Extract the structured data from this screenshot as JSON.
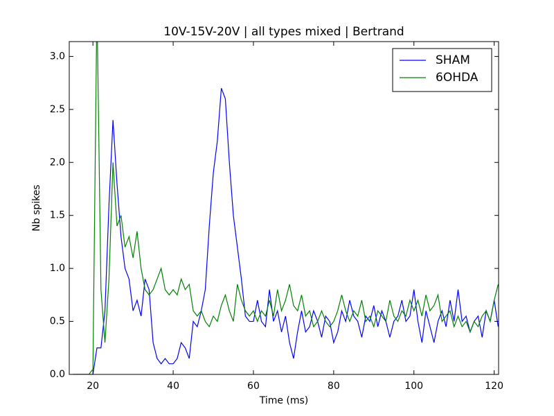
{
  "chart_data": {
    "type": "line",
    "title": "10V-15V-20V | all types mixed | Bertrand",
    "x_label": "Time (ms)",
    "y_label": "Nb spikes",
    "x": [
      15,
      16,
      17,
      18,
      19,
      20,
      21,
      22,
      23,
      24,
      25,
      26,
      27,
      28,
      29,
      30,
      31,
      32,
      33,
      34,
      35,
      36,
      37,
      38,
      39,
      40,
      41,
      42,
      43,
      44,
      45,
      46,
      47,
      48,
      49,
      50,
      51,
      52,
      53,
      54,
      55,
      56,
      57,
      58,
      59,
      60,
      61,
      62,
      63,
      64,
      65,
      66,
      67,
      68,
      69,
      70,
      71,
      72,
      73,
      74,
      75,
      76,
      77,
      78,
      79,
      80,
      81,
      82,
      83,
      84,
      85,
      86,
      87,
      88,
      89,
      90,
      91,
      92,
      93,
      94,
      95,
      96,
      97,
      98,
      99,
      100,
      101,
      102,
      103,
      104,
      105,
      106,
      107,
      108,
      109,
      110,
      111,
      112,
      113,
      114,
      115,
      116,
      117,
      118,
      119,
      120,
      121
    ],
    "series": [
      {
        "name": "SHAM",
        "color": "#0000ff",
        "values": [
          0,
          0,
          0,
          0,
          0,
          0,
          0.25,
          0.25,
          0.6,
          1.6,
          2.4,
          1.8,
          1.3,
          1.0,
          0.9,
          0.6,
          0.7,
          0.55,
          0.9,
          0.8,
          0.3,
          0.15,
          0.1,
          0.15,
          0.1,
          0.1,
          0.15,
          0.3,
          0.25,
          0.15,
          0.5,
          0.45,
          0.6,
          0.8,
          1.4,
          1.9,
          2.2,
          2.7,
          2.6,
          2.0,
          1.5,
          1.2,
          0.9,
          0.55,
          0.5,
          0.5,
          0.7,
          0.5,
          0.45,
          0.8,
          0.5,
          0.6,
          0.4,
          0.55,
          0.3,
          0.15,
          0.4,
          0.6,
          0.4,
          0.45,
          0.6,
          0.5,
          0.35,
          0.55,
          0.5,
          0.3,
          0.4,
          0.6,
          0.5,
          0.7,
          0.55,
          0.5,
          0.35,
          0.55,
          0.5,
          0.65,
          0.45,
          0.6,
          0.5,
          0.35,
          0.5,
          0.55,
          0.7,
          0.5,
          0.55,
          0.8,
          0.5,
          0.3,
          0.6,
          0.45,
          0.3,
          0.5,
          0.6,
          0.45,
          0.7,
          0.5,
          0.8,
          0.5,
          0.55,
          0.4,
          0.5,
          0.55,
          0.35,
          0.6,
          0.5,
          0.7,
          0.45
        ]
      },
      {
        "name": "6OHDA",
        "color": "#008000",
        "values": [
          0,
          0,
          0,
          0,
          0,
          0.05,
          3.5,
          0.8,
          0.3,
          0.9,
          2.0,
          1.4,
          1.5,
          1.2,
          1.3,
          1.1,
          1.35,
          1.0,
          0.8,
          0.75,
          0.8,
          0.9,
          1.0,
          0.8,
          0.75,
          0.8,
          0.75,
          0.9,
          0.8,
          0.85,
          0.6,
          0.55,
          0.6,
          0.5,
          0.45,
          0.55,
          0.5,
          0.65,
          0.75,
          0.6,
          0.5,
          0.85,
          0.7,
          0.6,
          0.55,
          0.6,
          0.5,
          0.6,
          0.55,
          0.7,
          0.55,
          0.8,
          0.6,
          0.7,
          0.85,
          0.65,
          0.6,
          0.75,
          0.55,
          0.6,
          0.45,
          0.5,
          0.6,
          0.5,
          0.45,
          0.5,
          0.6,
          0.75,
          0.6,
          0.5,
          0.6,
          0.55,
          0.7,
          0.5,
          0.55,
          0.45,
          0.6,
          0.55,
          0.5,
          0.7,
          0.55,
          0.5,
          0.6,
          0.55,
          0.7,
          0.6,
          0.7,
          0.55,
          0.75,
          0.6,
          0.65,
          0.75,
          0.5,
          0.55,
          0.6,
          0.45,
          0.55,
          0.45,
          0.5,
          0.4,
          0.5,
          0.45,
          0.55,
          0.6,
          0.5,
          0.7,
          0.85
        ]
      }
    ],
    "xlim": [
      14.1,
      121.1
    ],
    "xticks": [
      20,
      40,
      60,
      80,
      100,
      120
    ],
    "ylim": [
      0,
      3.14
    ],
    "yticks": [
      {
        "value": 0,
        "label": "0.0"
      },
      0.5,
      {
        "value": 1,
        "label": "1.0"
      },
      1.5,
      {
        "value": 2,
        "label": "2.0"
      },
      2.5,
      {
        "value": 3,
        "label": "3.0"
      }
    ],
    "grid": false,
    "legend": "upper right"
  }
}
